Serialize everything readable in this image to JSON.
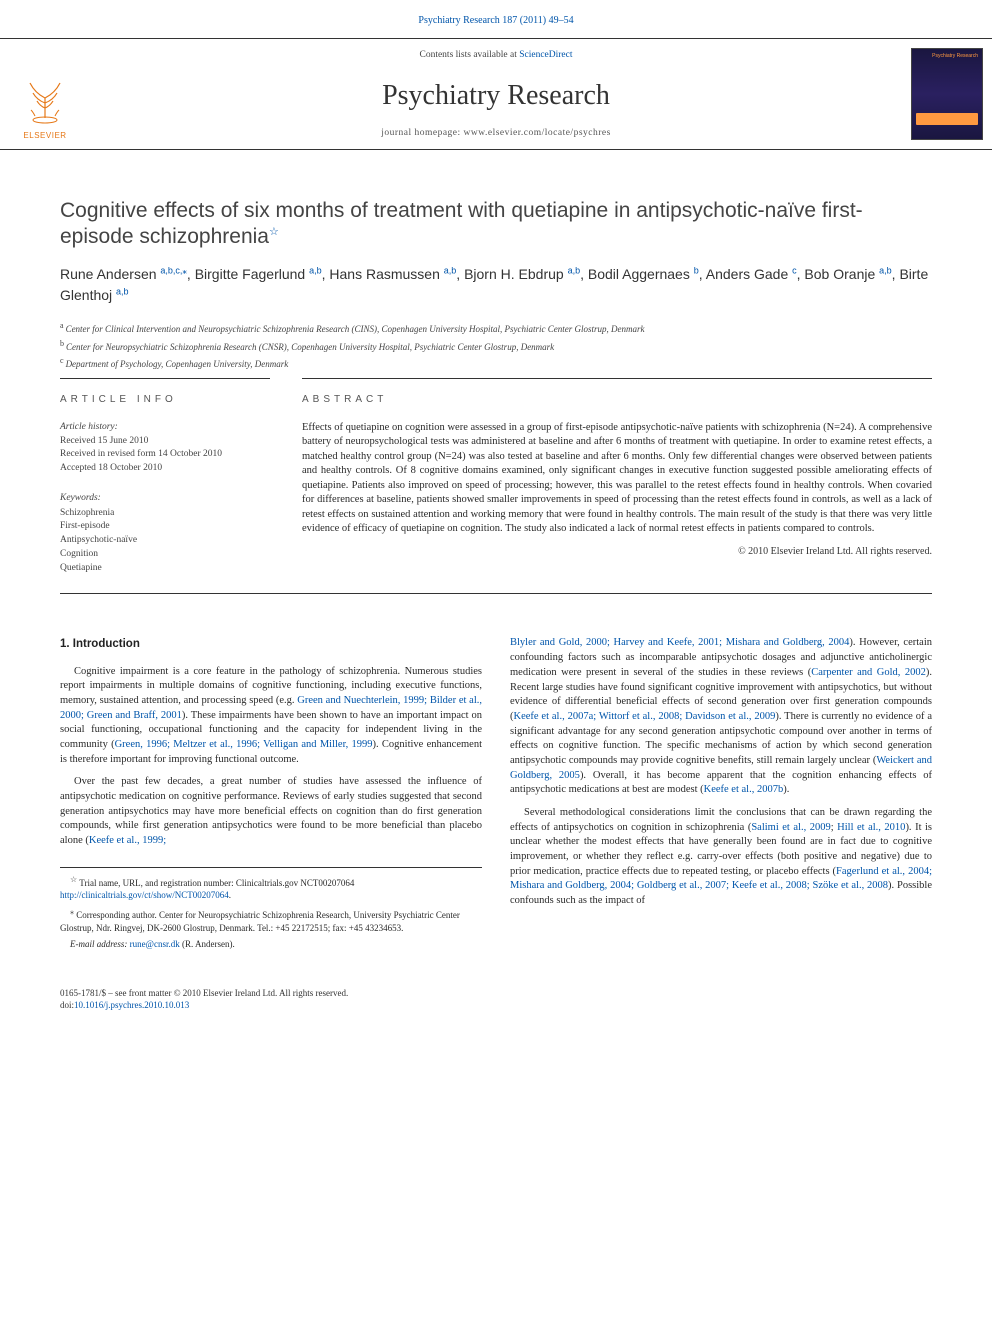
{
  "top_link": "Psychiatry Research 187 (2011) 49–54",
  "masthead": {
    "contents": "Contents lists available at ",
    "contents_link": "ScienceDirect",
    "journal_title": "Psychiatry Research",
    "homepage": "journal homepage: www.elsevier.com/locate/psychres",
    "elsevier": "ELSEVIER",
    "cover_label": "Psychiatry Research"
  },
  "title": "Cognitive effects of six months of treatment with quetiapine in antipsychotic-naïve first-episode schizophrenia",
  "star_sup": "☆",
  "authors": [
    {
      "name": "Rune Andersen ",
      "sup": "a,b,c,",
      "corr": "⁎"
    },
    {
      "name": ", Birgitte Fagerlund ",
      "sup": "a,b"
    },
    {
      "name": ", Hans Rasmussen ",
      "sup": "a,b"
    },
    {
      "name": ", Bjorn H. Ebdrup ",
      "sup": "a,b"
    },
    {
      "name": ", Bodil Aggernaes ",
      "sup": "b"
    },
    {
      "name": ", Anders Gade ",
      "sup": "c"
    },
    {
      "name": ", Bob Oranje ",
      "sup": "a,b"
    },
    {
      "name": ", Birte Glenthoj ",
      "sup": "a,b"
    }
  ],
  "affiliations": [
    {
      "label": "a",
      "text": "Center for Clinical Intervention and Neuropsychiatric Schizophrenia Research (CINS), Copenhagen University Hospital, Psychiatric Center Glostrup, Denmark"
    },
    {
      "label": "b",
      "text": "Center for Neuropsychiatric Schizophrenia Research (CNSR), Copenhagen University Hospital, Psychiatric Center Glostrup, Denmark"
    },
    {
      "label": "c",
      "text": "Department of Psychology, Copenhagen University, Denmark"
    }
  ],
  "info_head": "ARTICLE INFO",
  "abstract_head": "ABSTRACT",
  "history": {
    "label": "Article history:",
    "received": "Received 15 June 2010",
    "revised": "Received in revised form 14 October 2010",
    "accepted": "Accepted 18 October 2010"
  },
  "keywords": {
    "label": "Keywords:",
    "items": [
      "Schizophrenia",
      "First-episode",
      "Antipsychotic-naïve",
      "Cognition",
      "Quetiapine"
    ]
  },
  "abstract": "Effects of quetiapine on cognition were assessed in a group of first-episode antipsychotic-naïve patients with schizophrenia (N=24). A comprehensive battery of neuropsychological tests was administered at baseline and after 6 months of treatment with quetiapine. In order to examine retest effects, a matched healthy control group (N=24) was also tested at baseline and after 6 months. Only few differential changes were observed between patients and healthy controls. Of 8 cognitive domains examined, only significant changes in executive function suggested possible ameliorating effects of quetiapine. Patients also improved on speed of processing; however, this was parallel to the retest effects found in healthy controls. When covaried for differences at baseline, patients showed smaller improvements in speed of processing than the retest effects found in controls, as well as a lack of retest effects on sustained attention and working memory that were found in healthy controls. The main result of the study is that there was very little evidence of efficacy of quetiapine on cognition. The study also indicated a lack of normal retest effects in patients compared to controls.",
  "copyright": "© 2010 Elsevier Ireland Ltd. All rights reserved.",
  "intro_head": "1. Introduction",
  "col1": {
    "p1a": "Cognitive impairment is a core feature in the pathology of schizophrenia. Numerous studies report impairments in multiple domains of cognitive functioning, including executive functions, memory, sustained attention, and processing speed (e.g. ",
    "p1_ref1": "Green and Nuechterlein, 1999; Bilder et al., 2000; Green and Braff, 2001",
    "p1b": "). These impairments have been shown to have an important impact on social functioning, occupational functioning and the capacity for independent living in the community (",
    "p1_ref2": "Green, 1996; Meltzer et al., 1996; Velligan and Miller, 1999",
    "p1c": "). Cognitive enhancement is therefore important for improving functional outcome.",
    "p2a": "Over the past few decades, a great number of studies have assessed the influence of antipsychotic medication on cognitive performance. Reviews of early studies suggested that second generation antipsychotics may have more beneficial effects on cognition than do first generation compounds, while first generation antipsychotics were found to be more beneficial than placebo alone (",
    "p2_ref1": "Keefe et al., 1999;"
  },
  "col2": {
    "p1_ref1": "Blyler and Gold, 2000; Harvey and Keefe, 2001; Mishara and Goldberg, 2004",
    "p1a": "). However, certain confounding factors such as incomparable antipsychotic dosages and adjunctive anticholinergic medication were present in several of the studies in these reviews (",
    "p1_ref2": "Carpenter and Gold, 2002",
    "p1b": "). Recent large studies have found significant cognitive improvement with antipsychotics, but without evidence of differential beneficial effects of second generation over first generation compounds (",
    "p1_ref3": "Keefe et al., 2007a; Wittorf et al., 2008; Davidson et al., 2009",
    "p1c": "). There is currently no evidence of a significant advantage for any second generation antipsychotic compound over another in terms of effects on cognitive function. The specific mechanisms of action by which second generation antipsychotic compounds may provide cognitive benefits, still remain largely unclear (",
    "p1_ref4": "Weickert and Goldberg, 2005",
    "p1d": "). Overall, it has become apparent that the cognition enhancing effects of antipsychotic medications at best are modest (",
    "p1_ref5": "Keefe et al., 2007b",
    "p1e": ").",
    "p2a": "Several methodological considerations limit the conclusions that can be drawn regarding the effects of antipsychotics on cognition in schizophrenia (",
    "p2_ref1": "Salimi et al., 2009",
    "p2a2": "; ",
    "p2_ref1b": "Hill et al., 2010",
    "p2b": "). It is unclear whether the modest effects that have generally been found are in fact due to cognitive improvement, or whether they reflect e.g. carry-over effects (both positive and negative) due to prior medication, practice effects due to repeated testing, or placebo effects (",
    "p2_ref2": "Fagerlund et al., 2004; Mishara and Goldberg, 2004; Goldberg et al., 2007; Keefe et al., 2008; Szöke et al., 2008",
    "p2c": "). Possible confounds such as the impact of"
  },
  "footnotes": {
    "trial_a": "Trial name, URL, and registration number: Clinicaltrials.gov NCT00207064 ",
    "trial_link": "http://clinicaltrials.gov/ct/show/NCT00207064",
    "trial_b": ".",
    "corr": "Corresponding author. Center for Neuropsychiatric Schizophrenia Research, University Psychiatric Center Glostrup, Ndr. Ringvej, DK-2600 Glostrup, Denmark. Tel.: +45 22172515; fax: +45 43234653.",
    "email_label": "E-mail address: ",
    "email": "rune@cnsr.dk",
    "email_who": " (R. Andersen)."
  },
  "footer": {
    "issn": "0165-1781/$ – see front matter © 2010 Elsevier Ireland Ltd. All rights reserved.",
    "doi_label": "doi:",
    "doi": "10.1016/j.psychres.2010.10.013"
  }
}
